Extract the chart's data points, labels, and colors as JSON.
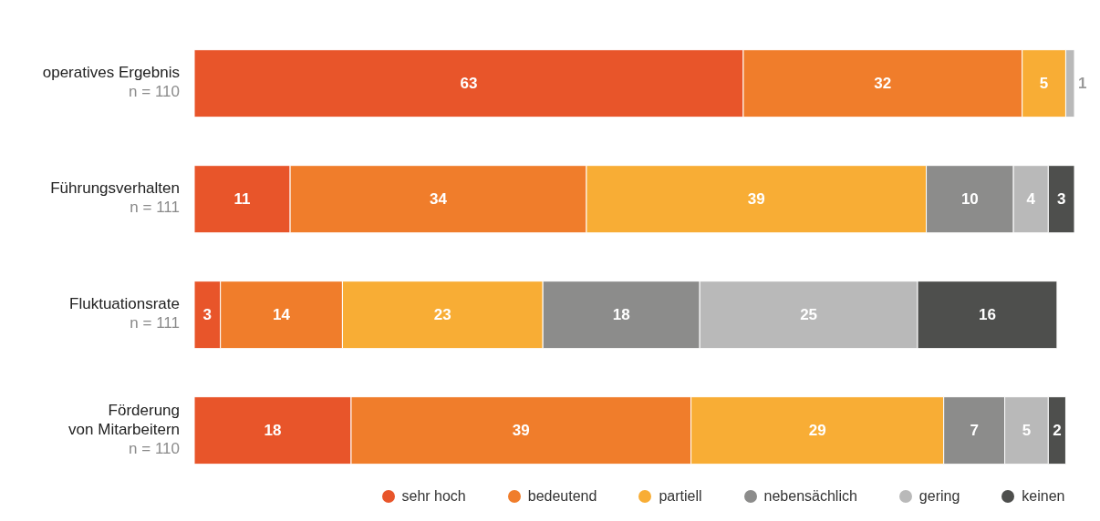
{
  "chart_data": {
    "type": "bar",
    "orientation": "horizontal",
    "stacked": true,
    "data_labels": true,
    "legend": "bottom",
    "categories": [
      "operatives Ergebnis\nn = 110",
      "Führungsverhalten\nn = 111",
      "Fluktuationsrate\nn = 111",
      "Förderung\nvon Mitarbeitern\nn = 110"
    ],
    "series": [
      {
        "name": "sehr hoch",
        "color": "#e8552a",
        "values": [
          63,
          11,
          3,
          18
        ]
      },
      {
        "name": "bedeutend",
        "color": "#f07d2b",
        "values": [
          32,
          34,
          14,
          39
        ]
      },
      {
        "name": "partiell",
        "color": "#f8ad35",
        "values": [
          5,
          39,
          23,
          29
        ]
      },
      {
        "name": "nebensächlich",
        "color": "#8c8c8b",
        "values": [
          null,
          10,
          18,
          7
        ]
      },
      {
        "name": "gering",
        "color": "#b9b9b9",
        "values": [
          1,
          4,
          25,
          5
        ]
      },
      {
        "name": "keinen",
        "color": "#4e4f4d",
        "values": [
          null,
          3,
          16,
          2
        ]
      }
    ]
  }
}
